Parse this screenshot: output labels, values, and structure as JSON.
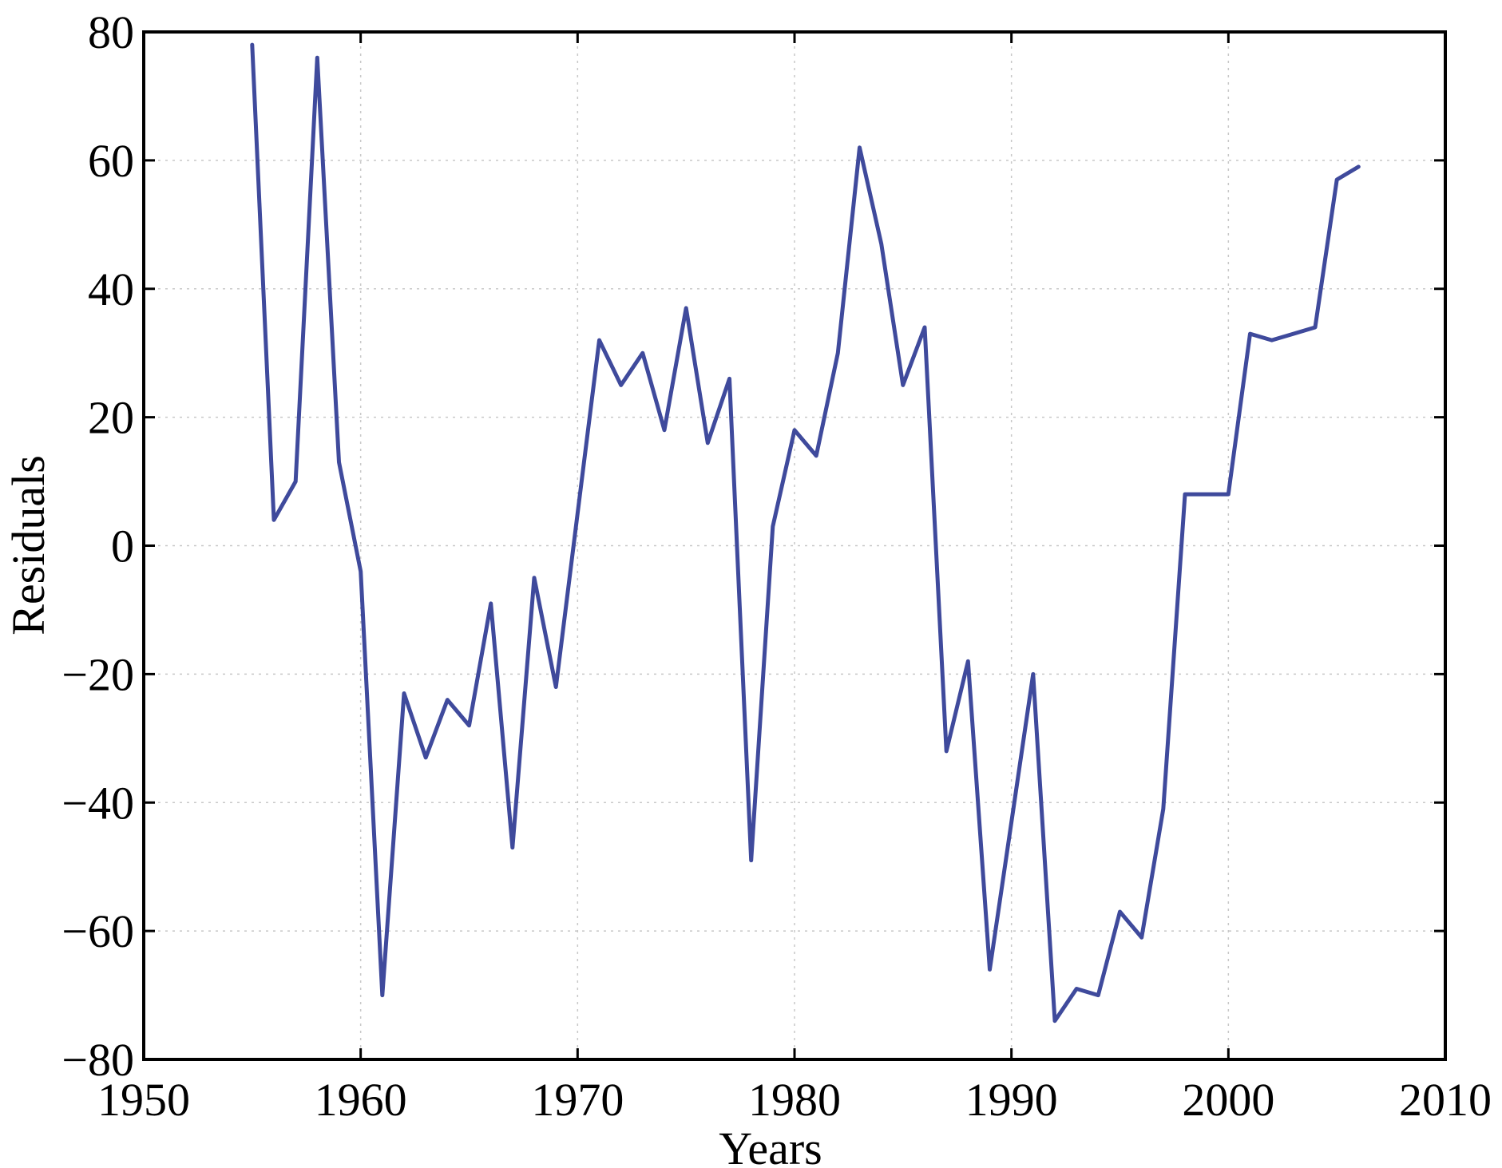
{
  "chart_data": {
    "type": "line",
    "title": "",
    "xlabel": "Years",
    "ylabel": "Residuals",
    "xlim": [
      1950,
      2010
    ],
    "ylim": [
      -80,
      80
    ],
    "xticks": [
      1950,
      1960,
      1970,
      1980,
      1990,
      2000,
      2010
    ],
    "yticks": [
      -80,
      -60,
      -40,
      -20,
      0,
      20,
      40,
      60,
      80
    ],
    "xtick_labels": [
      "1950",
      "1960",
      "1970",
      "1980",
      "1990",
      "2000",
      "2010"
    ],
    "ytick_labels": [
      "−80",
      "−60",
      "−40",
      "−20",
      "0",
      "20",
      "40",
      "60",
      "80"
    ],
    "grid": true,
    "line_color": "#3f4a9c",
    "series": [
      {
        "x": [
          1955,
          1956,
          1957,
          1958,
          1959,
          1960,
          1961,
          1962,
          1963,
          1964,
          1965,
          1966,
          1967,
          1968,
          1969,
          1970,
          1971,
          1972,
          1973,
          1974,
          1975,
          1976,
          1977,
          1978,
          1979,
          1980,
          1981,
          1982,
          1983,
          1984,
          1985,
          1986,
          1987,
          1988,
          1989,
          1990,
          1991,
          1992,
          1993,
          1994,
          1995,
          1996,
          1997,
          1998,
          1999,
          2000,
          2001,
          2002,
          2003,
          2004,
          2005,
          2006
        ],
        "values": [
          78,
          4,
          10,
          76,
          13,
          -4,
          -70,
          -23,
          -33,
          -24,
          -28,
          -9,
          -47,
          -5,
          -22,
          5,
          32,
          25,
          30,
          18,
          37,
          16,
          26,
          -49,
          3,
          18,
          14,
          30,
          62,
          47,
          25,
          34,
          -32,
          -18,
          -66,
          -43,
          -20,
          -74,
          -69,
          -70,
          -57,
          -61,
          -41,
          8,
          8,
          8,
          33,
          32,
          33,
          34,
          57,
          59
        ]
      }
    ]
  }
}
